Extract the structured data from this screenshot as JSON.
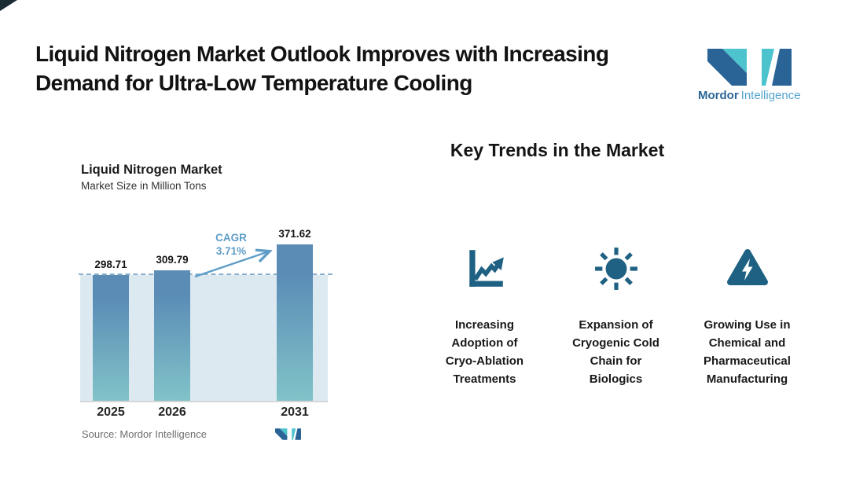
{
  "header": {
    "title": "Liquid Nitrogen Market Outlook Improves with Increasing\nDemand for Ultra-Low Temperature Cooling",
    "logo": {
      "name_bold": "Mordor",
      "name_light": "Intelligence"
    }
  },
  "chart_data": {
    "type": "bar",
    "title": "Liquid Nitrogen Market",
    "subtitle": "Market Size in Million Tons",
    "categories": [
      "2025",
      "2026",
      "2031"
    ],
    "values": [
      298.71,
      309.79,
      371.62
    ],
    "value_labels": [
      "298.71",
      "309.79",
      "371.62"
    ],
    "cagr_text": "CAGR\n3.71%",
    "baseline": 0,
    "ylabel": "Market Size in Million Tons",
    "legend": "none",
    "grid": "off",
    "source": "Source: Mordor Intelligence"
  },
  "trends": {
    "heading": "Key Trends in the Market",
    "items": [
      {
        "icon": "growth-chart-icon",
        "label": "Increasing\nAdoption of\nCryo-Ablation\nTreatments"
      },
      {
        "icon": "sun-icon",
        "label": "Expansion of\nCryogenic Cold\nChain for\nBiologics"
      },
      {
        "icon": "warning-bolt-icon",
        "label": "Growing Use in\nChemical and\nPharmaceutical\nManufacturing"
      }
    ]
  },
  "colors": {
    "icon_blue": "#1e6183",
    "bar_top": "#5a8cb6",
    "bar_bottom": "#81c3c8",
    "panel": "#dde9f1",
    "dashed": "#8ab0cd",
    "cagr_blue": "#5e9dc8",
    "baseline": "#d6d6d6",
    "logo_dark": "#2a6496",
    "logo_light": "#53a3cf",
    "logo_teal": "#4cc3cd",
    "source_gray": "#6e6e6e"
  }
}
